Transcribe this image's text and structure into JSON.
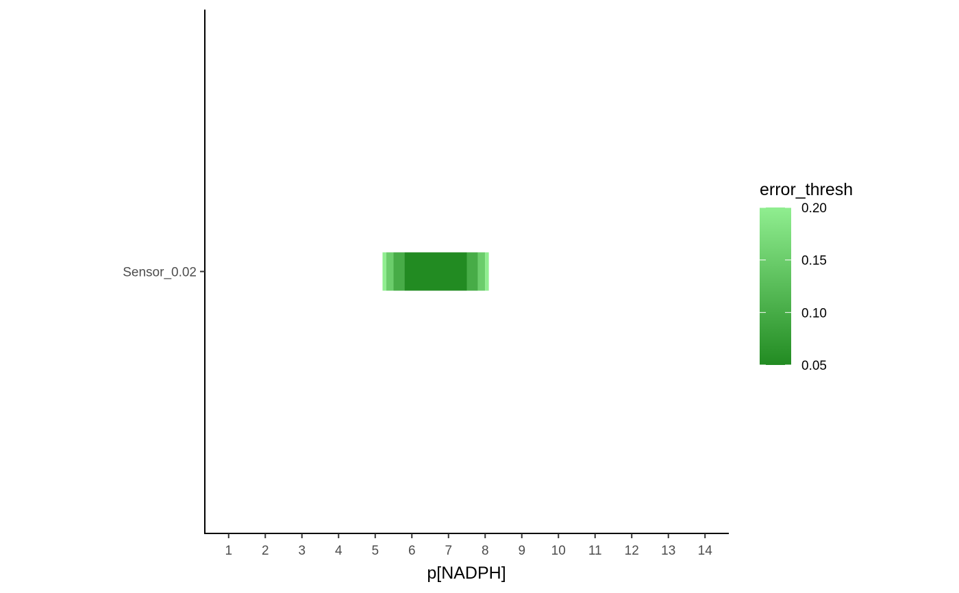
{
  "chart_data": {
    "type": "heatmap",
    "title": "",
    "xlabel": "p[NADPH]",
    "ylabel": "",
    "xlim": [
      0.35,
      14.65
    ],
    "x_ticks": [
      "1",
      "2",
      "3",
      "4",
      "5",
      "6",
      "7",
      "8",
      "9",
      "10",
      "11",
      "12",
      "13",
      "14"
    ],
    "y_categories": [
      "Sensor_0.02"
    ],
    "grid": false,
    "legend": {
      "title": "error_thresh",
      "placement": "right",
      "range": [
        0.05,
        0.2
      ],
      "breaks": [
        "0.20",
        "0.15",
        "0.10",
        "0.05"
      ],
      "low_color": "#228B22",
      "high_color": "#90EE90"
    },
    "tiles": [
      {
        "y": "Sensor_0.02",
        "x_start": 5.2,
        "x_end": 5.3,
        "error_thresh": 0.2
      },
      {
        "y": "Sensor_0.02",
        "x_start": 5.3,
        "x_end": 5.5,
        "error_thresh": 0.15
      },
      {
        "y": "Sensor_0.02",
        "x_start": 5.5,
        "x_end": 5.8,
        "error_thresh": 0.1
      },
      {
        "y": "Sensor_0.02",
        "x_start": 5.8,
        "x_end": 7.5,
        "error_thresh": 0.05
      },
      {
        "y": "Sensor_0.02",
        "x_start": 7.5,
        "x_end": 7.8,
        "error_thresh": 0.1
      },
      {
        "y": "Sensor_0.02",
        "x_start": 7.8,
        "x_end": 8.0,
        "error_thresh": 0.15
      },
      {
        "y": "Sensor_0.02",
        "x_start": 8.0,
        "x_end": 8.1,
        "error_thresh": 0.2
      }
    ]
  }
}
